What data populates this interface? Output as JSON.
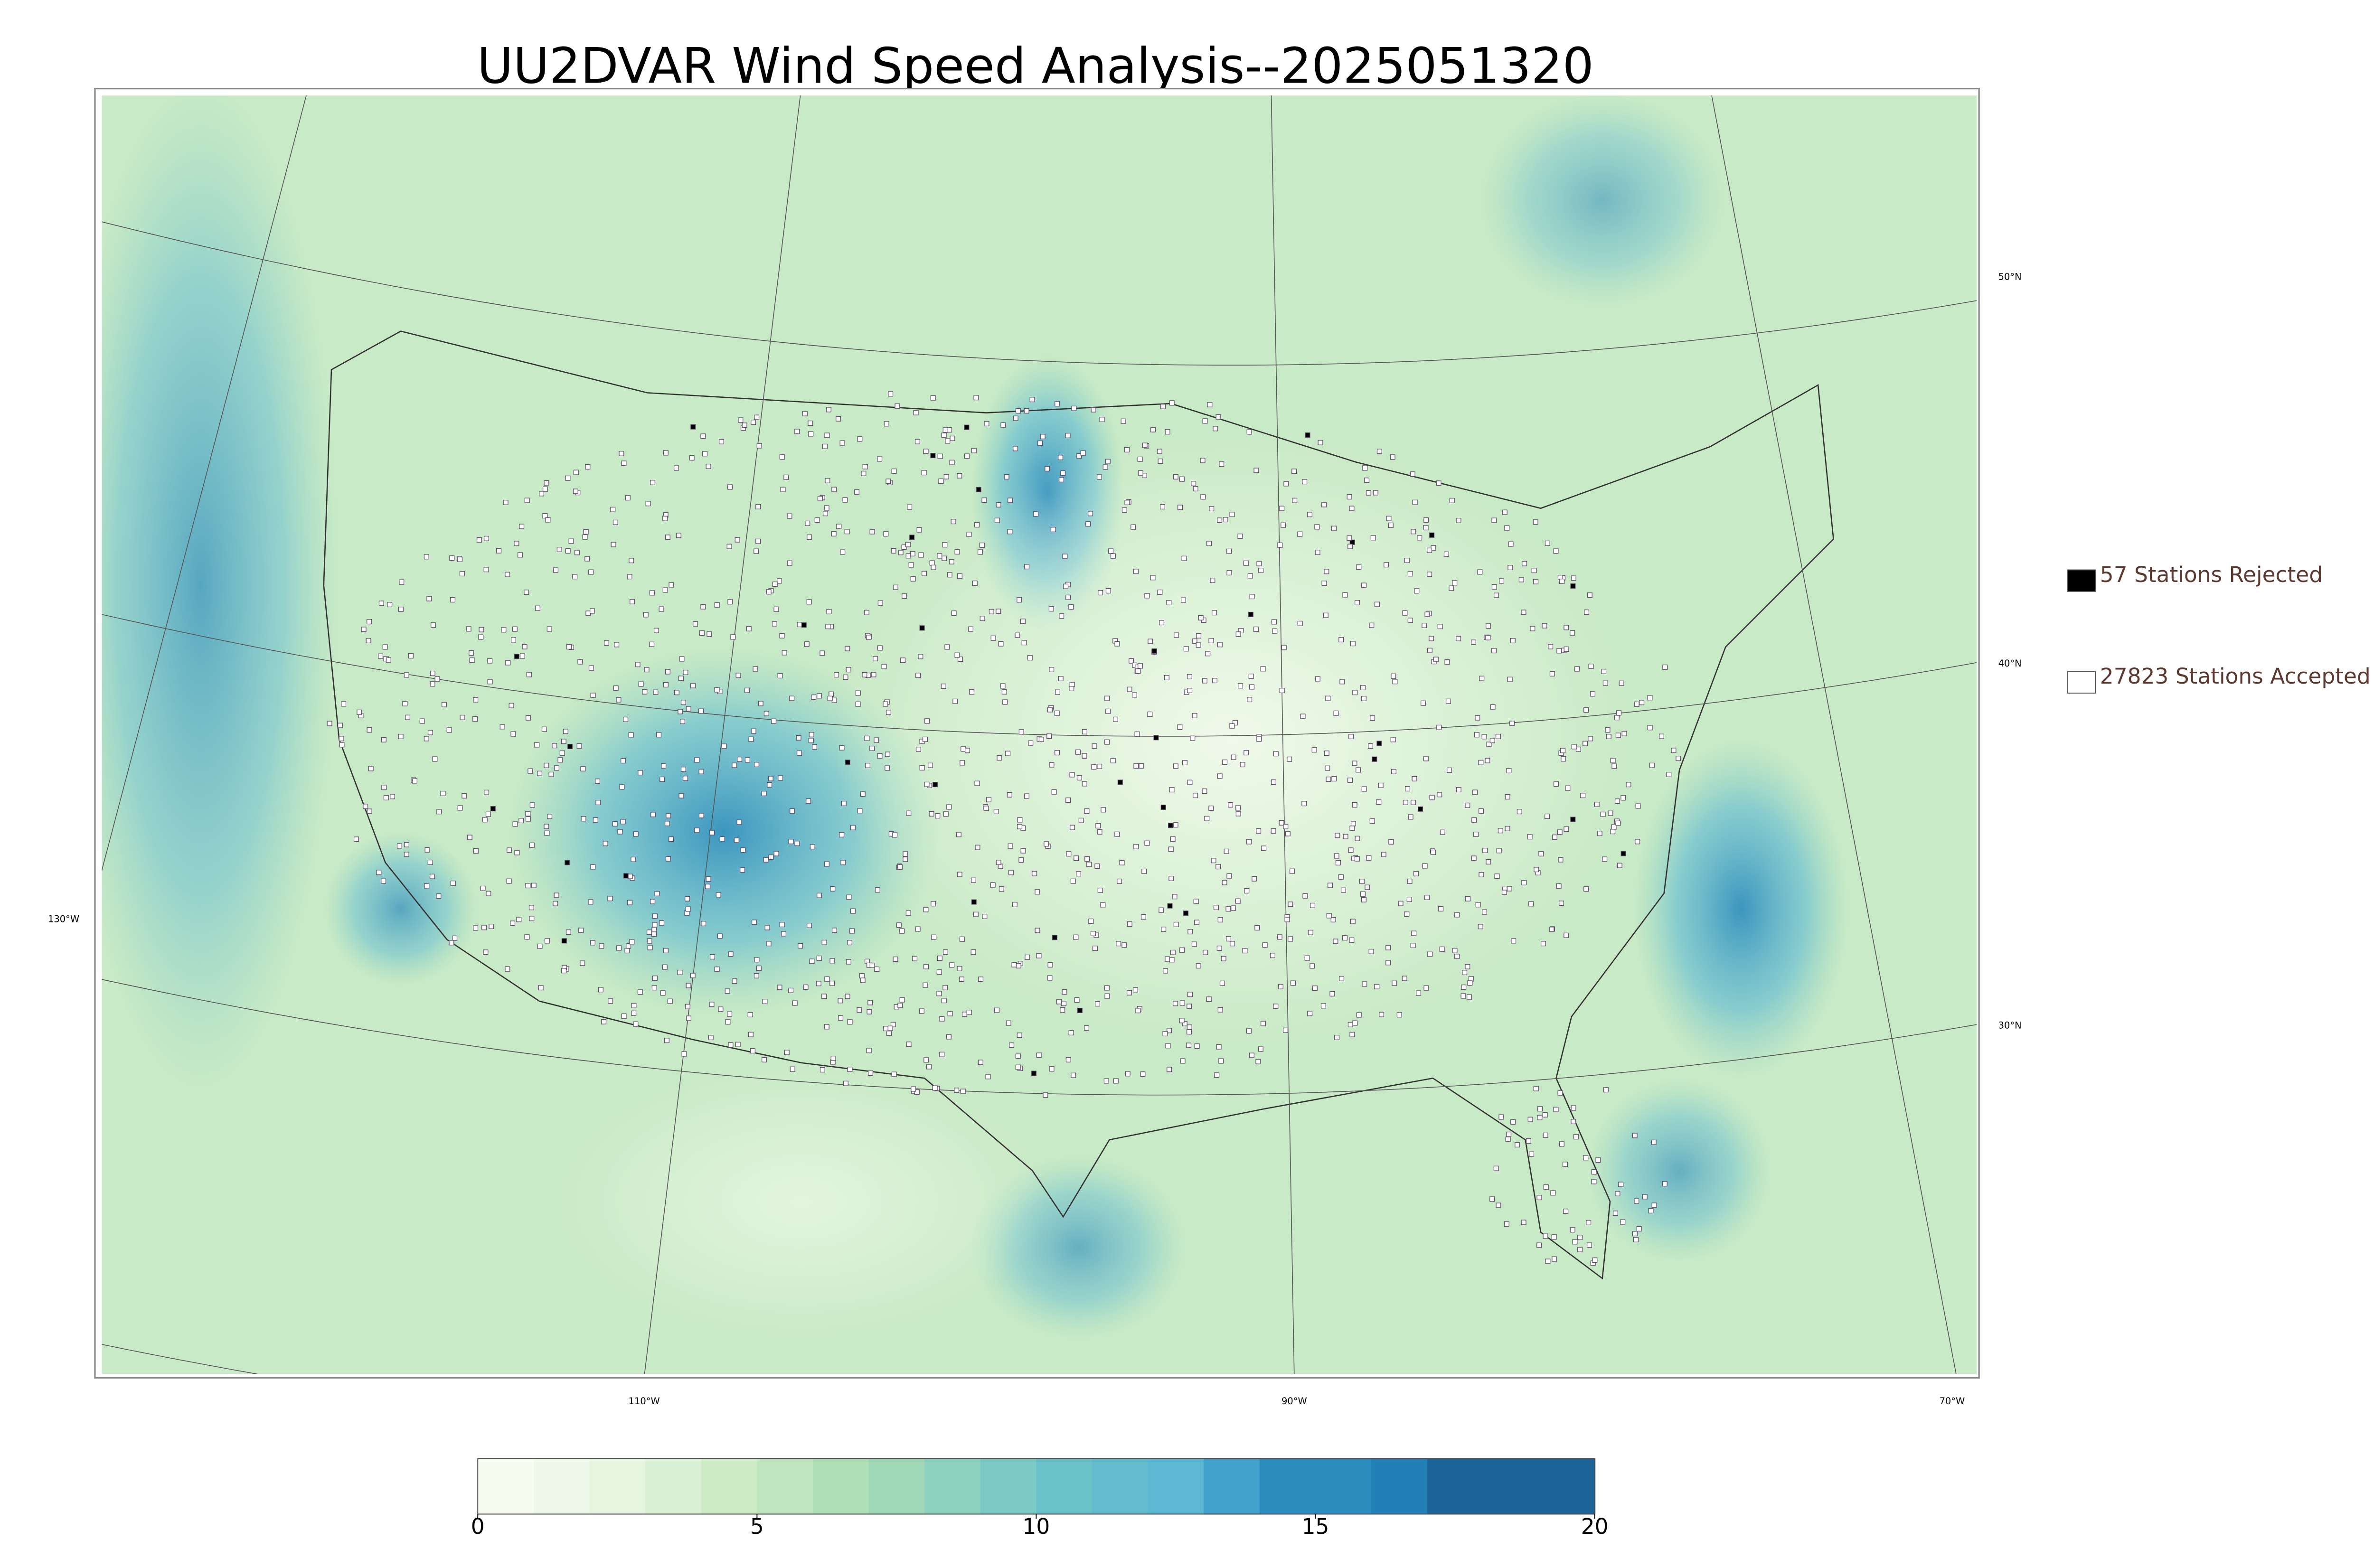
{
  "title": "UU2DVAR Wind Speed Analysis--2025051320",
  "legend": [
    {
      "label": "57 Stations Rejected",
      "color": "#000000"
    },
    {
      "label": "27823 Stations Accepted",
      "color": "#ffffff"
    }
  ],
  "graticule": {
    "latitudes": [
      "50°N",
      "40°N",
      "30°N"
    ],
    "longitudes": [
      "130°W",
      "110°W",
      "90°W",
      "70°W"
    ]
  },
  "colorbar": {
    "lim": [
      0,
      20
    ],
    "ticks": [
      0,
      5,
      10,
      15,
      20
    ],
    "colors": [
      "#f7fcf0",
      "#eef8ea",
      "#e5f5e0",
      "#dbf1d6",
      "#cdebc5",
      "#bfe6bf",
      "#b0e0b6",
      "#9fd9b8",
      "#8dd2bf",
      "#7bcbc4",
      "#6ac2c9",
      "#62bccd",
      "#5cb8d3",
      "#42a2cc",
      "#2b8cbe",
      "#2b8cbe",
      "#2280b6",
      "#1c6497",
      "#1c6497",
      "#1c6497"
    ]
  }
}
